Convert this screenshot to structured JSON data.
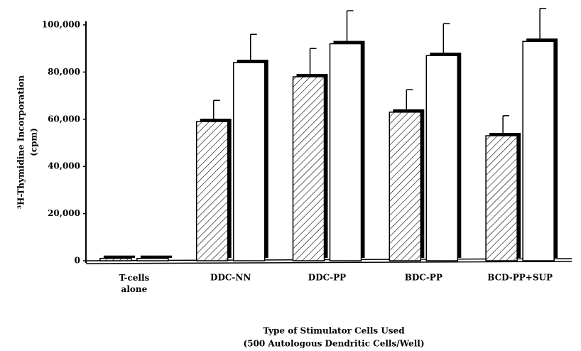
{
  "chart_data": {
    "type": "bar",
    "y_label": [
      "³H-Thymidine Incorporation",
      "(cpm)"
    ],
    "x_label": [
      "Type of Stimulator Cells Used",
      "(500 Autologous Dendritic Cells/Well)"
    ],
    "categories": [
      "T-cells alone",
      "DDC-NN",
      "DDC-PP",
      "BDC-PP",
      "BCD-PP+SUP"
    ],
    "series": [
      {
        "color": "#ffffff",
        "hatch": true,
        "values": [
          1000,
          59000,
          78000,
          63000,
          53000
        ],
        "errors": [
          null,
          9000,
          12000,
          9500,
          8500
        ]
      },
      {
        "color": "#ffffff",
        "hatch": false,
        "values": [
          1000,
          84000,
          92000,
          87000,
          93000
        ],
        "errors": [
          null,
          12000,
          14000,
          13500,
          14000
        ]
      }
    ],
    "ylim": [
      0,
      100000
    ],
    "yticks": [
      0,
      {
        "value": 20000,
        "label": "20,000"
      },
      {
        "value": 40000,
        "label": "40,000"
      },
      {
        "value": 60000,
        "label": "60,000"
      },
      {
        "value": 80000,
        "label": "80,000"
      },
      {
        "value": 100000,
        "label": "100,000"
      }
    ]
  }
}
